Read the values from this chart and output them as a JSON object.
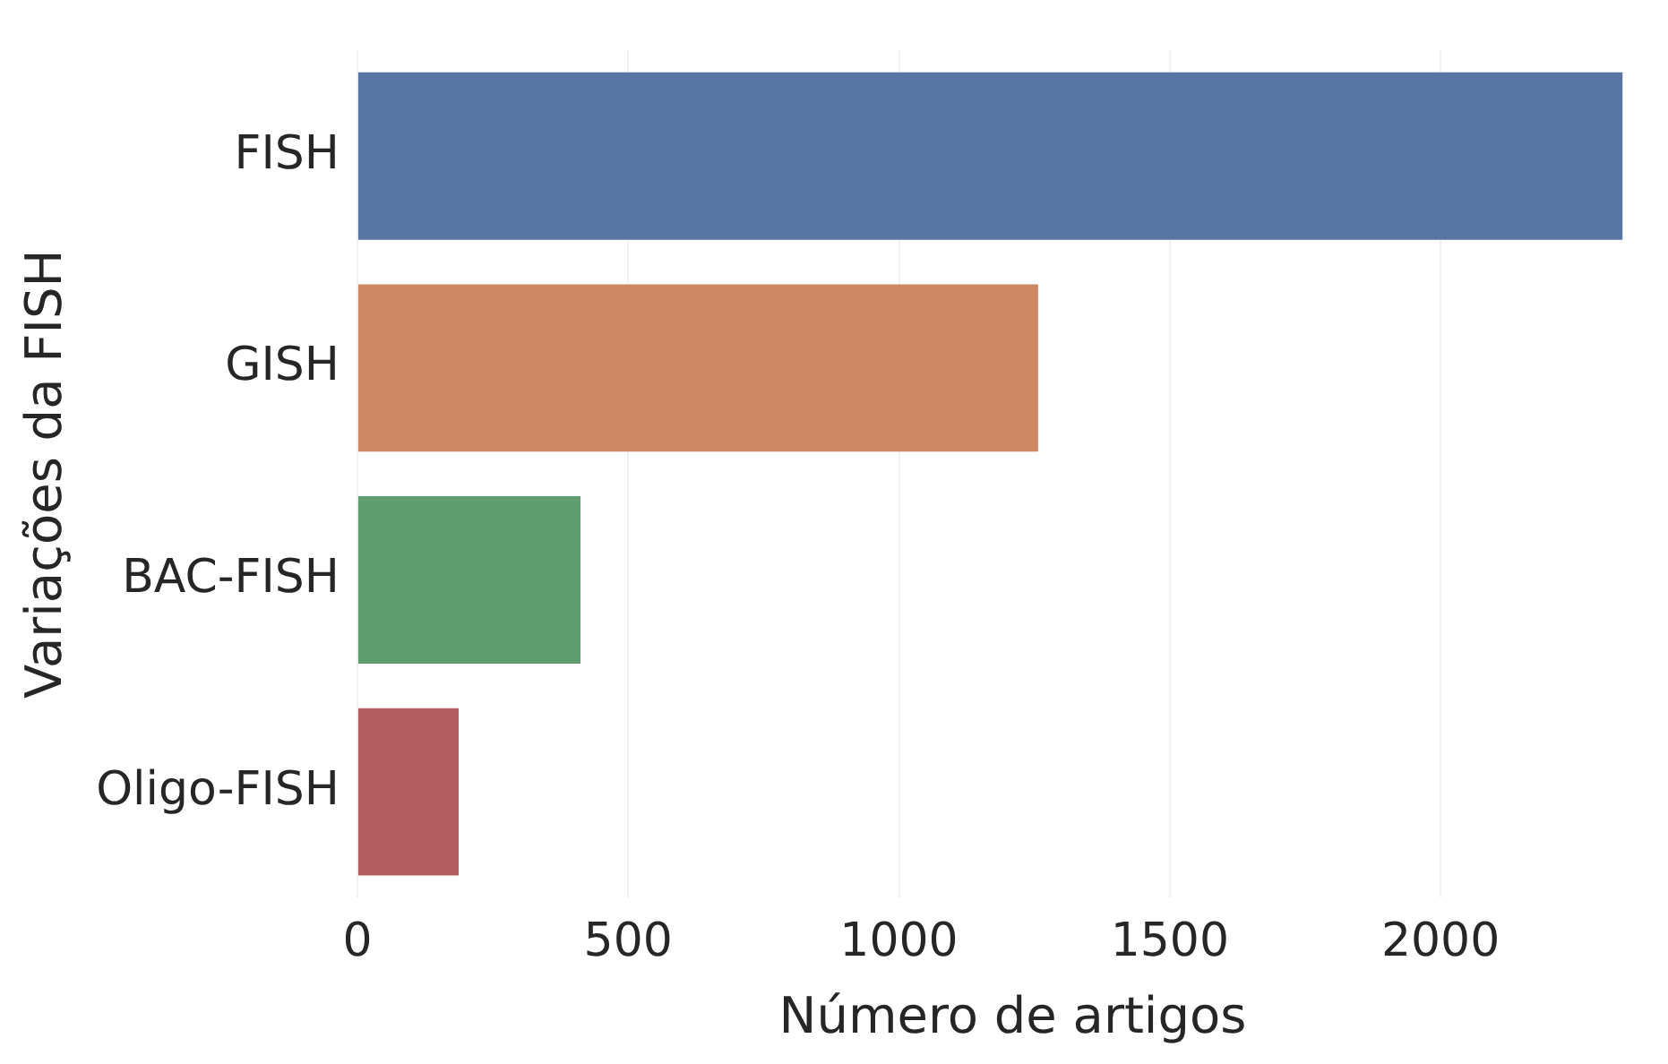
{
  "chart_data": {
    "type": "bar",
    "orientation": "horizontal",
    "xlabel": "Número de artigos",
    "ylabel": "Variações da FISH",
    "categories": [
      "FISH",
      "GISH",
      "BAC-FISH",
      "Oligo-FISH"
    ],
    "values": [
      2336,
      1257,
      412,
      187
    ],
    "colors": [
      "#5975a4",
      "#cc8963",
      "#5f9e6e",
      "#b55d60"
    ],
    "xlim": [
      0,
      2420
    ],
    "xticks": [
      0,
      500,
      1000,
      1500,
      2000
    ],
    "grid": "x",
    "legend": false
  }
}
